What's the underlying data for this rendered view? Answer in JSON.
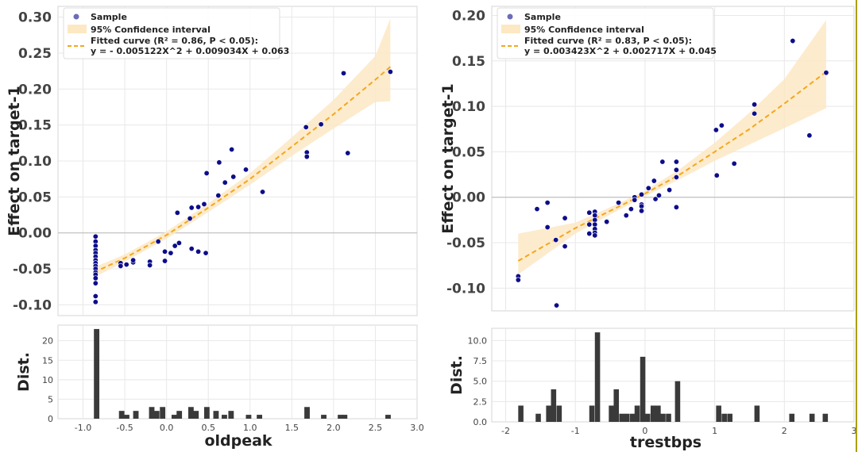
{
  "chart_data": [
    {
      "type": "scatter",
      "xlabel": "oldpeak",
      "ylabel": "Effect on target-1",
      "xlim": [
        -1.3,
        3.0
      ],
      "ylim": [
        -0.115,
        0.315
      ],
      "x_ticks": [
        -1.0,
        -0.5,
        0.0,
        0.5,
        1.0,
        1.5,
        2.0,
        2.5,
        3.0
      ],
      "x_tick_labels": [
        "-1.0",
        "-0.5",
        "0.0",
        "0.5",
        "1.0",
        "1.5",
        "2.0",
        "2.5",
        "3.0"
      ],
      "y_ticks": [
        -0.1,
        -0.05,
        0.0,
        0.05,
        0.1,
        0.15,
        0.2,
        0.25,
        0.3
      ],
      "y_tick_labels": [
        "-0.10",
        "-0.05",
        "0.00",
        "0.05",
        "0.10",
        "0.15",
        "0.20",
        "0.25",
        "0.30"
      ],
      "legend": {
        "position": "top-left",
        "sample_label": "Sample",
        "ci_label": "95% Confidence interval",
        "fit_label_line1": "Fitted curve (R² = 0.86, P < 0.05):",
        "fit_label_line2": "y = - 0.005122X^2 + 0.009034X + 0.063"
      },
      "fit": {
        "type": "polyline",
        "x_range": [
          -0.87,
          2.68
        ],
        "points": [
          [
            -0.87,
            -0.055
          ],
          [
            -0.5,
            -0.035
          ],
          [
            0.0,
            -0.003
          ],
          [
            0.5,
            0.035
          ],
          [
            1.0,
            0.075
          ],
          [
            1.5,
            0.12
          ],
          [
            2.0,
            0.165
          ],
          [
            2.5,
            0.213
          ],
          [
            2.68,
            0.231
          ]
        ]
      },
      "ci": {
        "x": [
          -0.87,
          -0.5,
          0.0,
          0.5,
          1.0,
          1.5,
          2.0,
          2.5,
          2.68
        ],
        "lower": [
          -0.062,
          -0.04,
          -0.008,
          0.029,
          0.067,
          0.107,
          0.145,
          0.182,
          0.183
        ],
        "upper": [
          -0.048,
          -0.03,
          0.002,
          0.041,
          0.083,
          0.133,
          0.185,
          0.246,
          0.298
        ]
      },
      "points": [
        [
          -0.85,
          -0.005
        ],
        [
          -0.85,
          -0.012
        ],
        [
          -0.85,
          -0.018
        ],
        [
          -0.85,
          -0.024
        ],
        [
          -0.85,
          -0.028
        ],
        [
          -0.85,
          -0.033
        ],
        [
          -0.85,
          -0.038
        ],
        [
          -0.85,
          -0.042
        ],
        [
          -0.85,
          -0.046
        ],
        [
          -0.85,
          -0.05
        ],
        [
          -0.85,
          -0.055
        ],
        [
          -0.85,
          -0.058
        ],
        [
          -0.85,
          -0.063
        ],
        [
          -0.85,
          -0.07
        ],
        [
          -0.85,
          -0.088
        ],
        [
          -0.85,
          -0.096
        ],
        [
          -0.55,
          -0.042
        ],
        [
          -0.55,
          -0.046
        ],
        [
          -0.48,
          -0.044
        ],
        [
          -0.4,
          -0.041
        ],
        [
          -0.4,
          -0.038
        ],
        [
          -0.2,
          -0.04
        ],
        [
          -0.2,
          -0.045
        ],
        [
          -0.1,
          -0.012
        ],
        [
          -0.02,
          -0.026
        ],
        [
          -0.02,
          -0.039
        ],
        [
          0.05,
          -0.028
        ],
        [
          0.1,
          -0.018
        ],
        [
          0.15,
          -0.014
        ],
        [
          0.13,
          0.028
        ],
        [
          0.28,
          0.02
        ],
        [
          0.3,
          0.035
        ],
        [
          0.3,
          -0.022
        ],
        [
          0.38,
          0.036
        ],
        [
          0.38,
          -0.026
        ],
        [
          0.45,
          0.04
        ],
        [
          0.47,
          -0.028
        ],
        [
          0.48,
          0.083
        ],
        [
          0.62,
          0.052
        ],
        [
          0.63,
          0.098
        ],
        [
          0.7,
          0.07
        ],
        [
          0.78,
          0.116
        ],
        [
          0.8,
          0.078
        ],
        [
          0.95,
          0.088
        ],
        [
          1.15,
          0.057
        ],
        [
          1.67,
          0.147
        ],
        [
          1.68,
          0.112
        ],
        [
          1.68,
          0.106
        ],
        [
          1.85,
          0.151
        ],
        [
          2.12,
          0.222
        ],
        [
          2.17,
          0.111
        ],
        [
          2.68,
          0.224
        ]
      ],
      "hist": {
        "ylabel": "Dist.",
        "y_ticks": [
          0,
          5,
          10,
          15,
          20
        ],
        "y_tick_labels": [
          "0",
          "5",
          "10",
          "15",
          "20"
        ],
        "ylim": [
          0,
          24
        ],
        "bin_width": 0.065,
        "bins": [
          [
            -0.87,
            23
          ],
          [
            -0.57,
            2
          ],
          [
            -0.51,
            1
          ],
          [
            -0.4,
            2
          ],
          [
            -0.21,
            3
          ],
          [
            -0.15,
            2
          ],
          [
            -0.08,
            3
          ],
          [
            0.06,
            1
          ],
          [
            0.12,
            2
          ],
          [
            0.26,
            3
          ],
          [
            0.32,
            2
          ],
          [
            0.45,
            3
          ],
          [
            0.56,
            2
          ],
          [
            0.66,
            1
          ],
          [
            0.74,
            2
          ],
          [
            0.95,
            1
          ],
          [
            1.08,
            1
          ],
          [
            1.65,
            3
          ],
          [
            1.85,
            1
          ],
          [
            2.05,
            1
          ],
          [
            2.1,
            1
          ],
          [
            2.62,
            1
          ]
        ]
      }
    },
    {
      "type": "scatter",
      "xlabel": "trestbps",
      "ylabel": "Effect on target-1",
      "xlim": [
        -2.2,
        3.0
      ],
      "ylim": [
        -0.125,
        0.21
      ],
      "x_ticks": [
        -2,
        -1,
        0,
        1,
        2,
        3
      ],
      "x_tick_labels": [
        "-2",
        "-1",
        "0",
        "1",
        "2",
        "3"
      ],
      "y_ticks": [
        -0.1,
        -0.05,
        0.0,
        0.05,
        0.1,
        0.15,
        0.2
      ],
      "y_tick_labels": [
        "-0.10",
        "-0.05",
        "0.00",
        "0.05",
        "0.10",
        "0.15",
        "0.20"
      ],
      "legend": {
        "position": "top-left",
        "sample_label": "Sample",
        "ci_label": "95% Confidence interval",
        "fit_label_line1": "Fitted curve (R² = 0.83, P < 0.05):",
        "fit_label_line2": "y = 0.003423X^2 + 0.002717X + 0.045"
      },
      "fit": {
        "type": "polyline",
        "x_range": [
          -1.82,
          2.6
        ],
        "points": [
          [
            -1.82,
            -0.07
          ],
          [
            -1.0,
            -0.034
          ],
          [
            -0.5,
            -0.015
          ],
          [
            0.0,
            0.004
          ],
          [
            0.5,
            0.025
          ],
          [
            1.0,
            0.05
          ],
          [
            1.5,
            0.075
          ],
          [
            2.0,
            0.103
          ],
          [
            2.6,
            0.138
          ]
        ]
      },
      "ci": {
        "x": [
          -1.82,
          -1.0,
          -0.5,
          0.0,
          0.5,
          1.0,
          1.5,
          2.0,
          2.6
        ],
        "lower": [
          -0.085,
          -0.04,
          -0.019,
          0.001,
          0.02,
          0.04,
          0.058,
          0.076,
          0.098
        ],
        "upper": [
          -0.04,
          -0.028,
          -0.011,
          0.007,
          0.031,
          0.06,
          0.093,
          0.13,
          0.195
        ]
      },
      "points": [
        [
          -1.82,
          -0.087
        ],
        [
          -1.82,
          -0.091
        ],
        [
          -1.55,
          -0.013
        ],
        [
          -1.4,
          -0.006
        ],
        [
          -1.4,
          -0.033
        ],
        [
          -1.28,
          -0.047
        ],
        [
          -1.27,
          -0.119
        ],
        [
          -1.15,
          -0.023
        ],
        [
          -1.15,
          -0.054
        ],
        [
          -0.8,
          -0.017
        ],
        [
          -0.8,
          -0.03
        ],
        [
          -0.8,
          -0.04
        ],
        [
          -0.72,
          -0.016
        ],
        [
          -0.72,
          -0.02
        ],
        [
          -0.72,
          -0.025
        ],
        [
          -0.72,
          -0.03
        ],
        [
          -0.72,
          -0.035
        ],
        [
          -0.72,
          -0.039
        ],
        [
          -0.72,
          -0.042
        ],
        [
          -0.55,
          -0.027
        ],
        [
          -0.38,
          -0.006
        ],
        [
          -0.27,
          -0.02
        ],
        [
          -0.2,
          -0.013
        ],
        [
          -0.15,
          0.0
        ],
        [
          -0.15,
          -0.003
        ],
        [
          -0.05,
          -0.008
        ],
        [
          -0.05,
          -0.01
        ],
        [
          -0.05,
          -0.015
        ],
        [
          -0.05,
          0.003
        ],
        [
          0.05,
          0.01
        ],
        [
          0.13,
          0.018
        ],
        [
          0.15,
          -0.002
        ],
        [
          0.2,
          0.002
        ],
        [
          0.25,
          0.039
        ],
        [
          0.35,
          0.008
        ],
        [
          0.45,
          0.039
        ],
        [
          0.45,
          0.03
        ],
        [
          0.45,
          0.022
        ],
        [
          0.45,
          -0.011
        ],
        [
          1.02,
          0.074
        ],
        [
          1.03,
          0.024
        ],
        [
          1.1,
          0.079
        ],
        [
          1.28,
          0.037
        ],
        [
          1.57,
          0.102
        ],
        [
          1.57,
          0.092
        ],
        [
          2.12,
          0.172
        ],
        [
          2.36,
          0.068
        ],
        [
          2.6,
          0.137
        ]
      ],
      "hist": {
        "ylabel": "Dist.",
        "y_ticks": [
          0.0,
          2.5,
          5.0,
          7.5,
          10.0
        ],
        "y_tick_labels": [
          "0.0",
          "2.5",
          "5.0",
          "7.5",
          "10.0"
        ],
        "ylim": [
          0,
          11.5
        ],
        "bin_width": 0.075,
        "bins": [
          [
            -1.82,
            2
          ],
          [
            -1.57,
            1
          ],
          [
            -1.42,
            2
          ],
          [
            -1.35,
            4
          ],
          [
            -1.27,
            2
          ],
          [
            -0.8,
            2
          ],
          [
            -0.72,
            11
          ],
          [
            -0.52,
            2
          ],
          [
            -0.45,
            4
          ],
          [
            -0.37,
            1
          ],
          [
            -0.3,
            1
          ],
          [
            -0.22,
            1
          ],
          [
            -0.15,
            2
          ],
          [
            -0.07,
            8
          ],
          [
            0.0,
            1
          ],
          [
            0.08,
            2
          ],
          [
            0.15,
            2
          ],
          [
            0.22,
            1
          ],
          [
            0.3,
            1
          ],
          [
            0.43,
            5
          ],
          [
            1.02,
            2
          ],
          [
            1.1,
            1
          ],
          [
            1.18,
            1
          ],
          [
            1.57,
            2
          ],
          [
            2.07,
            1
          ],
          [
            2.36,
            1
          ],
          [
            2.55,
            1
          ]
        ]
      }
    }
  ]
}
